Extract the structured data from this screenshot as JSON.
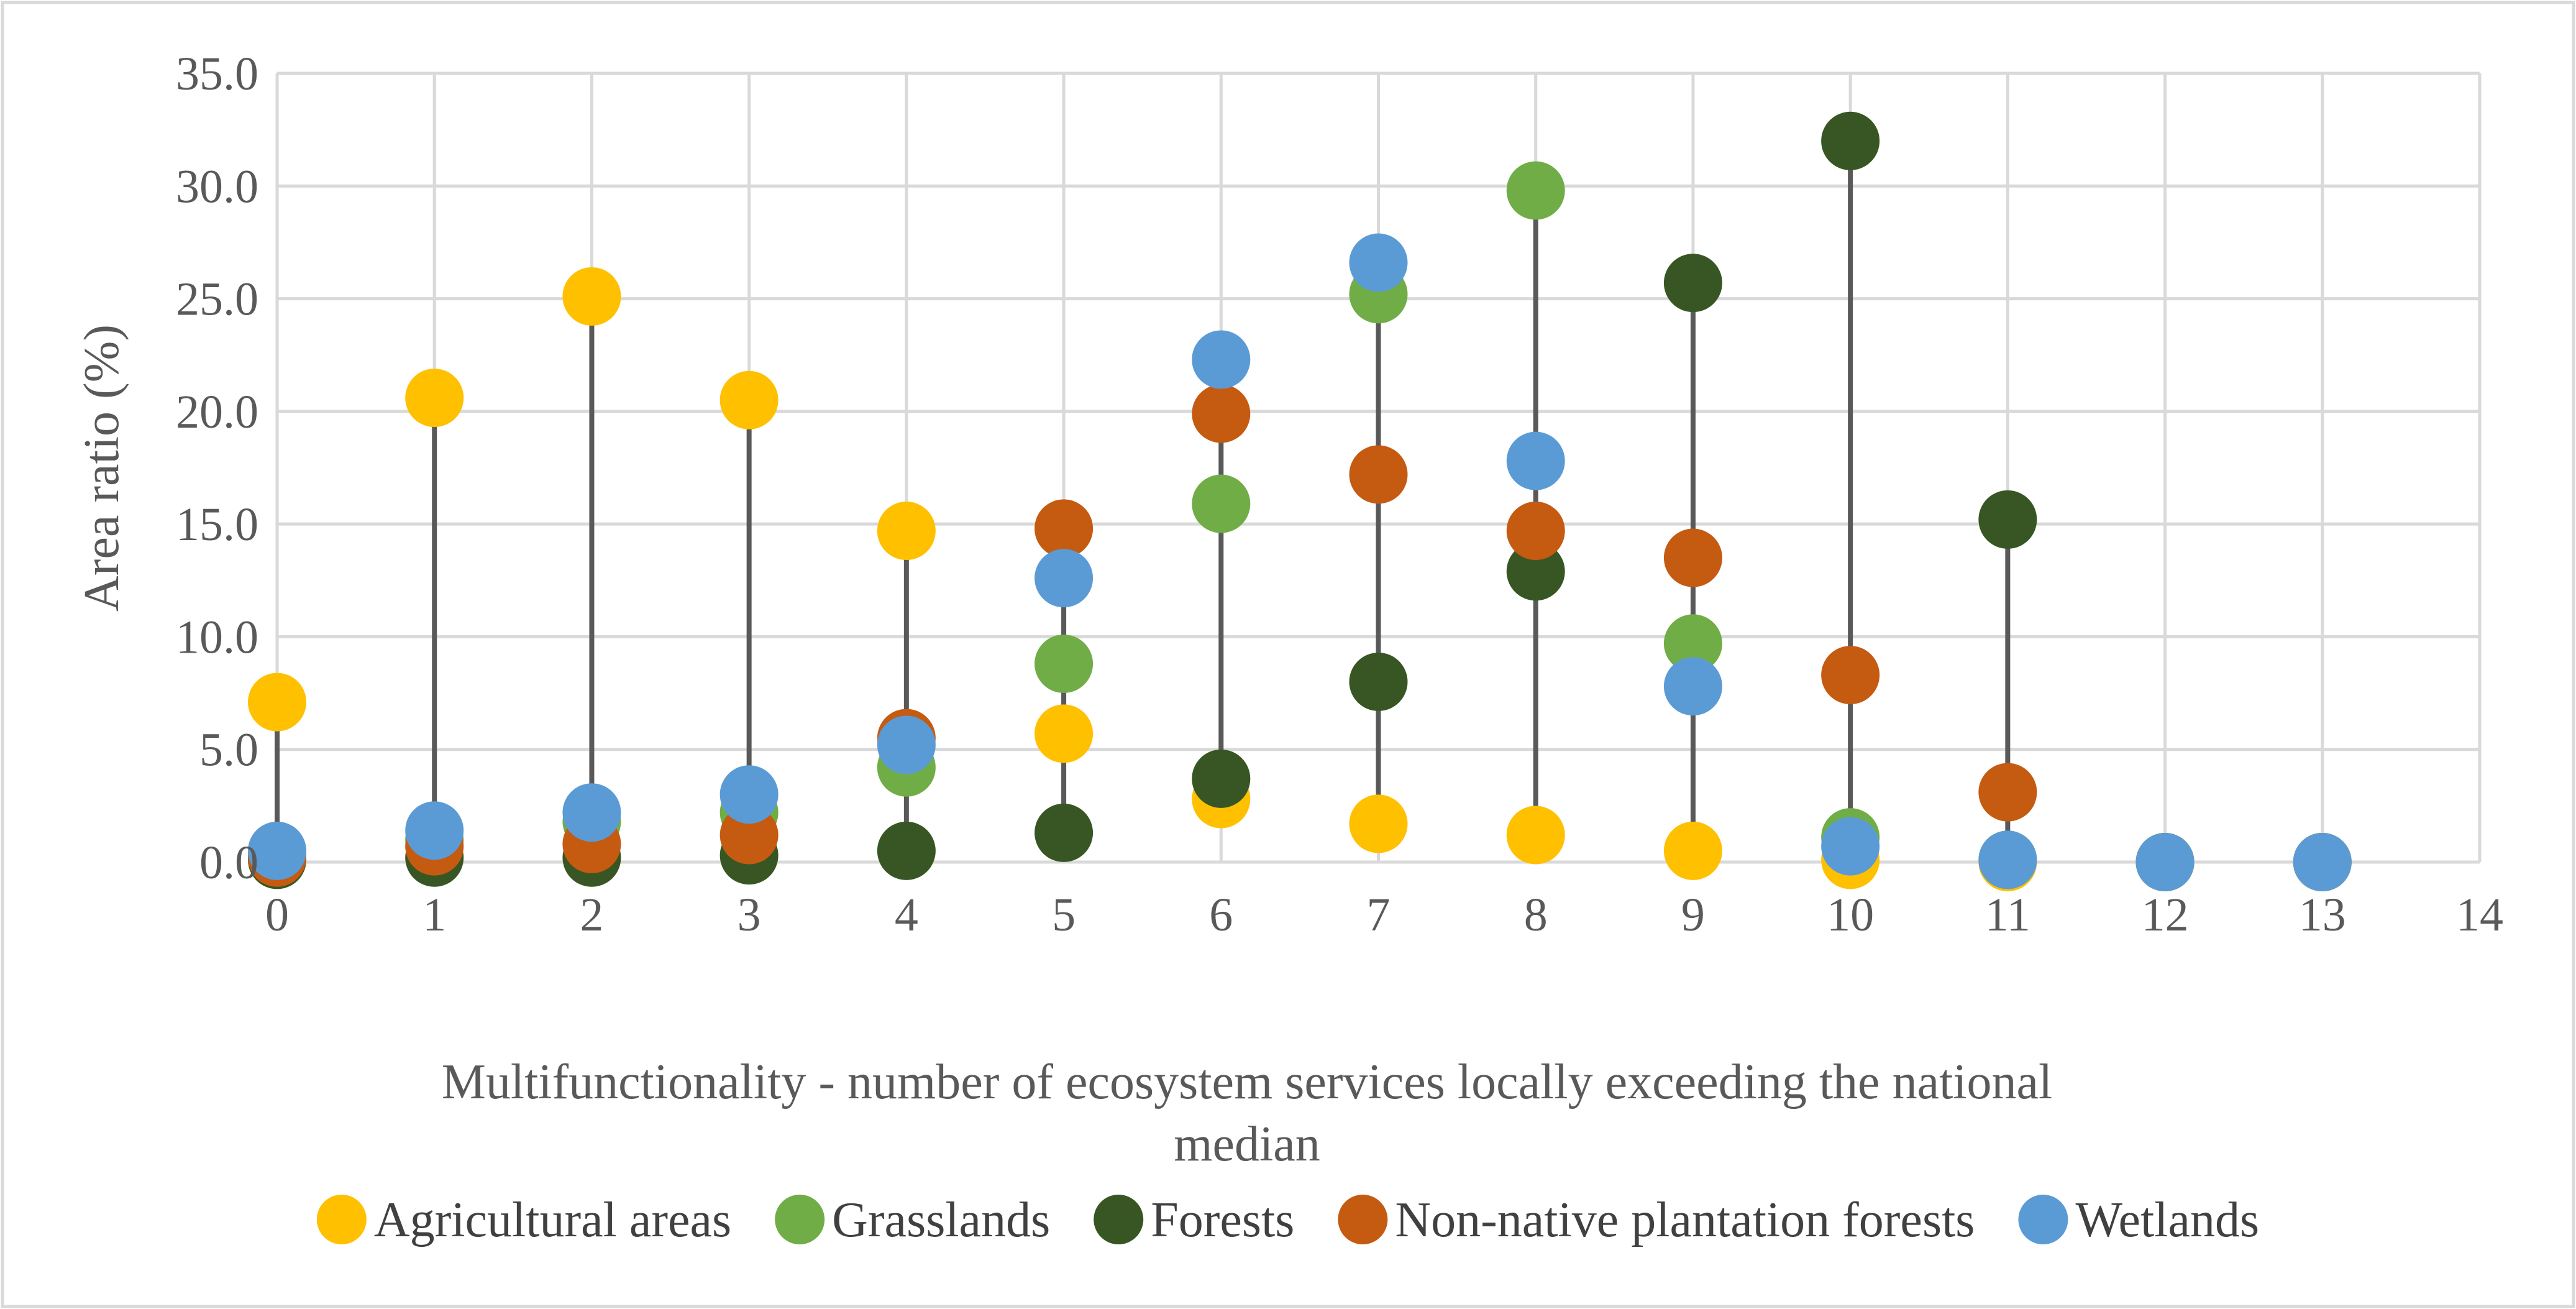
{
  "chart_data": {
    "type": "scatter",
    "title": "",
    "xlabel": "Multifunctionality - number of ecosystem services locally exceeding the national median",
    "xlabel_lines": [
      "Multifunctionality - number of ecosystem services locally exceeding the national",
      "median"
    ],
    "ylabel": "Area ratio (%)",
    "xlim": [
      0,
      14
    ],
    "ylim": [
      0,
      35
    ],
    "x_ticks": [
      0,
      1,
      2,
      3,
      4,
      5,
      6,
      7,
      8,
      9,
      10,
      11,
      12,
      13,
      14
    ],
    "x_tick_labels": [
      "0",
      "1",
      "2",
      "3",
      "4",
      "5",
      "6",
      "7",
      "8",
      "9",
      "10",
      "11",
      "12",
      "13",
      "14"
    ],
    "y_ticks": [
      0,
      5,
      10,
      15,
      20,
      25,
      30,
      35
    ],
    "y_tick_labels": [
      "0.0",
      "5.0",
      "10.0",
      "15.0",
      "20.0",
      "25.0",
      "30.0",
      "35.0"
    ],
    "grid": true,
    "legend_position": "bottom",
    "drop_lines": true,
    "x": [
      0,
      1,
      2,
      3,
      4,
      5,
      6,
      7,
      8,
      9,
      10,
      11,
      12,
      13
    ],
    "series": [
      {
        "name": "Agricultural areas",
        "color": "#FFC000",
        "values": [
          7.1,
          20.6,
          25.1,
          20.5,
          14.7,
          5.7,
          2.8,
          1.7,
          1.2,
          0.5,
          0.1,
          0.0,
          0.0,
          0.0
        ]
      },
      {
        "name": "Grasslands",
        "color": "#70AD47",
        "values": [
          0.3,
          1.0,
          1.8,
          2.2,
          4.2,
          8.8,
          15.9,
          25.2,
          29.8,
          9.7,
          1.1,
          0.1,
          0.0,
          0.0
        ]
      },
      {
        "name": "Forests",
        "color": "#375623",
        "values": [
          0.1,
          0.2,
          0.2,
          0.3,
          0.5,
          1.3,
          3.7,
          8.0,
          12.9,
          25.7,
          32.0,
          15.2,
          0.0,
          0.0
        ]
      },
      {
        "name": "Non-native plantation forests",
        "color": "#C55A11",
        "values": [
          0.2,
          0.7,
          0.8,
          1.2,
          5.5,
          14.8,
          19.9,
          17.2,
          14.7,
          13.5,
          8.3,
          3.1,
          0.0,
          0.0
        ]
      },
      {
        "name": "Wetlands",
        "color": "#5B9BD5",
        "values": [
          0.5,
          1.4,
          2.2,
          3.0,
          5.2,
          12.6,
          22.3,
          26.6,
          17.8,
          7.8,
          0.7,
          0.1,
          0.0,
          0.0
        ]
      }
    ]
  }
}
